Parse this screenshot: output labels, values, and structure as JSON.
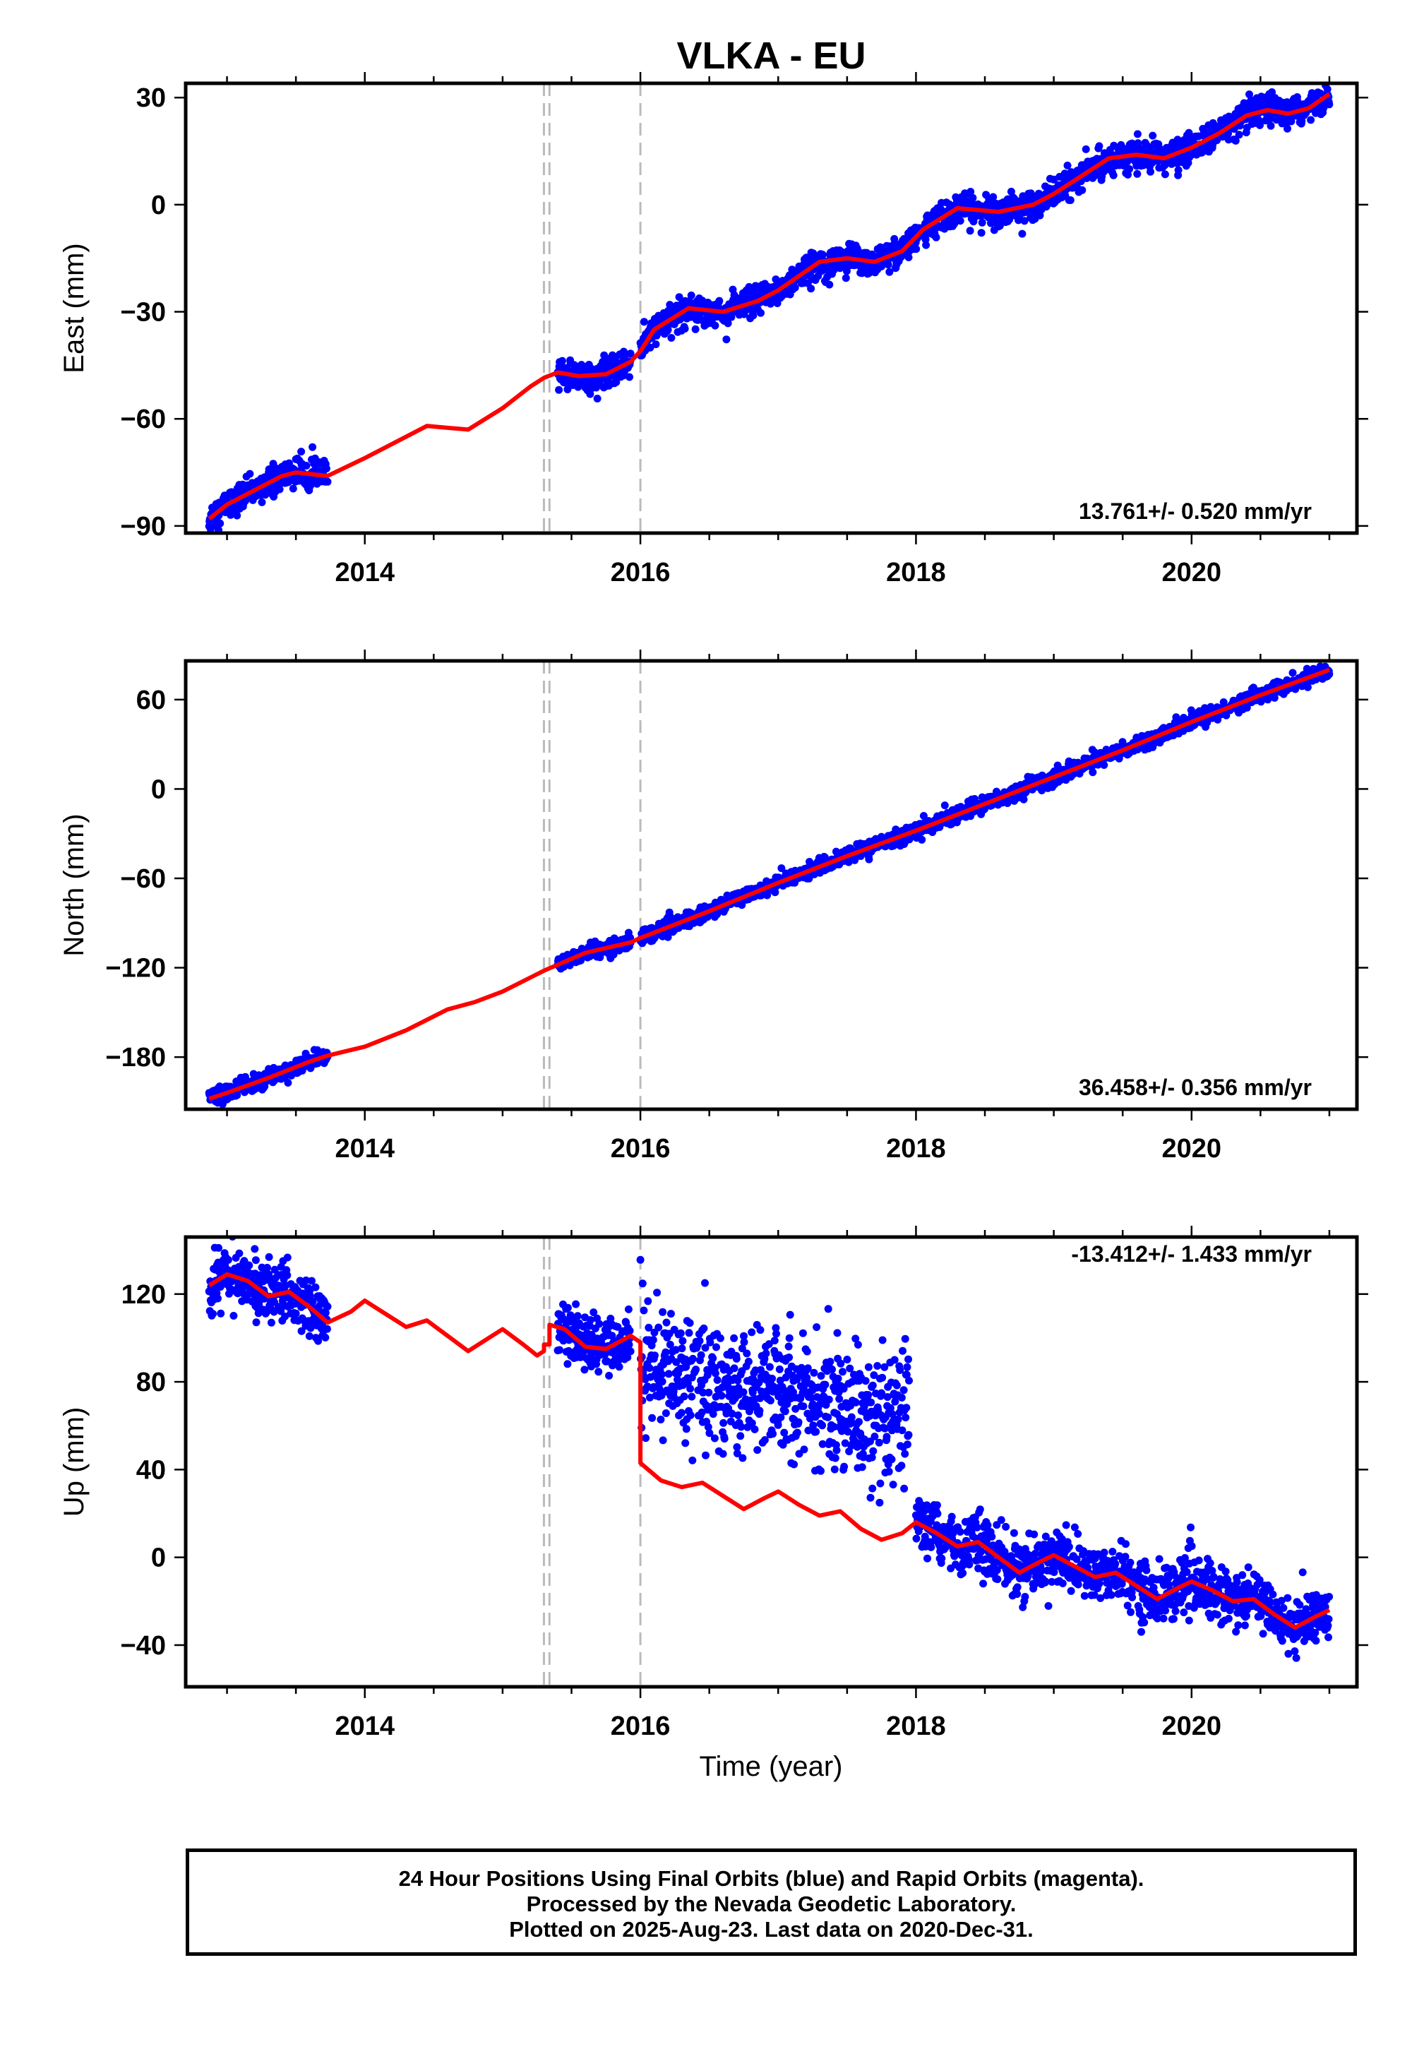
{
  "title": "VLKA - EU",
  "xlabel": "Time (year)",
  "footer": {
    "line1": "24 Hour Positions Using Final Orbits (blue) and Rapid Orbits (magenta).",
    "line2": "Processed by the Nevada Geodetic Laboratory.",
    "line3": "Plotted on 2025-Aug-23. Last data on 2020-Dec-31."
  },
  "colors": {
    "points": "#0000ff",
    "model": "#ff0000",
    "breaks": "#bbbbbb",
    "frame": "#000000"
  },
  "chart_data": [
    {
      "type": "scatter",
      "ylabel": "East (mm)",
      "rate": "13.761+/- 0.520 mm/yr",
      "xlim": [
        2012.7,
        2021.2
      ],
      "ylim": [
        -92,
        34
      ],
      "yticks": [
        30,
        0,
        -30,
        -60,
        -90
      ],
      "xticks": [
        2014,
        2016,
        2018,
        2020
      ],
      "breaks": [
        2015.3,
        2015.34,
        2016.0
      ],
      "data_segments": [
        [
          2012.87,
          2013.73
        ],
        [
          2015.4,
          2015.93
        ],
        [
          2016.0,
          2021.0
        ]
      ],
      "model": [
        [
          2012.87,
          -88
        ],
        [
          2013.0,
          -84
        ],
        [
          2013.2,
          -80
        ],
        [
          2013.4,
          -76
        ],
        [
          2013.5,
          -75
        ],
        [
          2013.73,
          -76
        ],
        [
          2014.0,
          -71
        ],
        [
          2014.2,
          -67
        ],
        [
          2014.45,
          -62
        ],
        [
          2014.6,
          -62.5
        ],
        [
          2014.75,
          -63
        ],
        [
          2015.0,
          -57
        ],
        [
          2015.2,
          -51
        ],
        [
          2015.3,
          -48.5
        ],
        [
          2015.4,
          -47
        ],
        [
          2015.55,
          -48
        ],
        [
          2015.75,
          -47.5
        ],
        [
          2015.93,
          -44
        ],
        [
          2016.0,
          -41
        ],
        [
          2016.1,
          -35
        ],
        [
          2016.35,
          -29
        ],
        [
          2016.6,
          -30
        ],
        [
          2016.85,
          -27
        ],
        [
          2017.0,
          -24
        ],
        [
          2017.3,
          -16
        ],
        [
          2017.5,
          -15
        ],
        [
          2017.7,
          -16
        ],
        [
          2017.9,
          -13
        ],
        [
          2018.05,
          -7
        ],
        [
          2018.3,
          -1
        ],
        [
          2018.6,
          -2
        ],
        [
          2018.85,
          0
        ],
        [
          2019.0,
          3
        ],
        [
          2019.2,
          8
        ],
        [
          2019.4,
          13
        ],
        [
          2019.6,
          14
        ],
        [
          2019.8,
          13
        ],
        [
          2020.0,
          16
        ],
        [
          2020.2,
          20
        ],
        [
          2020.4,
          25
        ],
        [
          2020.55,
          26.5
        ],
        [
          2020.7,
          25.5
        ],
        [
          2020.85,
          27
        ],
        [
          2021.0,
          31
        ]
      ],
      "scatter_sd": 2.0
    },
    {
      "type": "scatter",
      "ylabel": "North (mm)",
      "rate": "36.458+/- 0.356 mm/yr",
      "xlim": [
        2012.7,
        2021.2
      ],
      "ylim": [
        -215,
        86
      ],
      "yticks": [
        60,
        0,
        -60,
        -120,
        -180
      ],
      "xticks": [
        2014,
        2016,
        2018,
        2020
      ],
      "breaks": [
        2015.3,
        2015.34,
        2016.0
      ],
      "data_segments": [
        [
          2012.87,
          2013.73
        ],
        [
          2015.4,
          2015.93
        ],
        [
          2016.0,
          2021.0
        ]
      ],
      "model": [
        [
          2012.87,
          -208
        ],
        [
          2013.0,
          -204
        ],
        [
          2013.3,
          -194
        ],
        [
          2013.6,
          -183
        ],
        [
          2013.73,
          -179
        ],
        [
          2014.0,
          -173
        ],
        [
          2014.3,
          -162
        ],
        [
          2014.6,
          -148
        ],
        [
          2014.8,
          -143
        ],
        [
          2015.0,
          -136
        ],
        [
          2015.3,
          -122
        ],
        [
          2015.4,
          -118
        ],
        [
          2015.6,
          -110
        ],
        [
          2015.93,
          -103
        ],
        [
          2016.0,
          -100
        ],
        [
          2016.5,
          -82
        ],
        [
          2017.0,
          -63
        ],
        [
          2017.5,
          -45
        ],
        [
          2018.0,
          -28
        ],
        [
          2018.5,
          -10
        ],
        [
          2019.0,
          8
        ],
        [
          2019.5,
          26
        ],
        [
          2020.0,
          45
        ],
        [
          2020.5,
          63
        ],
        [
          2021.0,
          80
        ]
      ],
      "scatter_sd": 2.5
    },
    {
      "type": "scatter",
      "ylabel": "Up (mm)",
      "rate": "-13.412+/- 1.433 mm/yr",
      "xlim": [
        2012.7,
        2021.2
      ],
      "ylim": [
        -59,
        146
      ],
      "yticks": [
        120,
        80,
        40,
        0,
        -40
      ],
      "xticks": [
        2014,
        2016,
        2018,
        2020
      ],
      "breaks": [
        2015.3,
        2015.34,
        2016.0
      ],
      "data_segments": [
        [
          2012.87,
          2013.73
        ],
        [
          2015.4,
          2015.93
        ],
        [
          2016.0,
          2017.95
        ],
        [
          2018.0,
          2021.0
        ]
      ],
      "scatter_offsets": [
        0,
        0,
        50,
        0
      ],
      "model": [
        [
          2012.87,
          124
        ],
        [
          2013.0,
          129
        ],
        [
          2013.15,
          126
        ],
        [
          2013.3,
          119
        ],
        [
          2013.45,
          121
        ],
        [
          2013.6,
          114
        ],
        [
          2013.73,
          107
        ],
        [
          2013.9,
          112
        ],
        [
          2014.0,
          117
        ],
        [
          2014.15,
          111
        ],
        [
          2014.3,
          105
        ],
        [
          2014.45,
          108
        ],
        [
          2014.6,
          101
        ],
        [
          2014.75,
          94
        ],
        [
          2014.9,
          100
        ],
        [
          2015.0,
          104
        ],
        [
          2015.15,
          97
        ],
        [
          2015.25,
          92
        ],
        [
          2015.3,
          94
        ],
        [
          2015.3,
          97
        ],
        [
          2015.34,
          97
        ],
        [
          2015.34,
          106
        ],
        [
          2015.45,
          104
        ],
        [
          2015.6,
          96
        ],
        [
          2015.75,
          95
        ],
        [
          2015.93,
          101
        ],
        [
          2016.0,
          98
        ],
        [
          2016.0,
          43
        ],
        [
          2016.15,
          35
        ],
        [
          2016.3,
          32
        ],
        [
          2016.45,
          34
        ],
        [
          2016.6,
          28
        ],
        [
          2016.75,
          22
        ],
        [
          2016.9,
          27
        ],
        [
          2017.0,
          30
        ],
        [
          2017.15,
          24
        ],
        [
          2017.3,
          19
        ],
        [
          2017.45,
          21
        ],
        [
          2017.6,
          13
        ],
        [
          2017.75,
          8
        ],
        [
          2017.9,
          11
        ],
        [
          2018.0,
          16
        ],
        [
          2018.15,
          11
        ],
        [
          2018.3,
          5
        ],
        [
          2018.45,
          7
        ],
        [
          2018.6,
          0
        ],
        [
          2018.75,
          -7
        ],
        [
          2018.9,
          -2
        ],
        [
          2019.0,
          1
        ],
        [
          2019.15,
          -4
        ],
        [
          2019.3,
          -9
        ],
        [
          2019.45,
          -7
        ],
        [
          2019.6,
          -13
        ],
        [
          2019.75,
          -19
        ],
        [
          2019.9,
          -14
        ],
        [
          2020.0,
          -11
        ],
        [
          2020.15,
          -15
        ],
        [
          2020.3,
          -20
        ],
        [
          2020.45,
          -19
        ],
        [
          2020.6,
          -26
        ],
        [
          2020.75,
          -32
        ],
        [
          2020.9,
          -27
        ],
        [
          2021.0,
          -24
        ]
      ],
      "scatter_sd": 6.5
    }
  ]
}
